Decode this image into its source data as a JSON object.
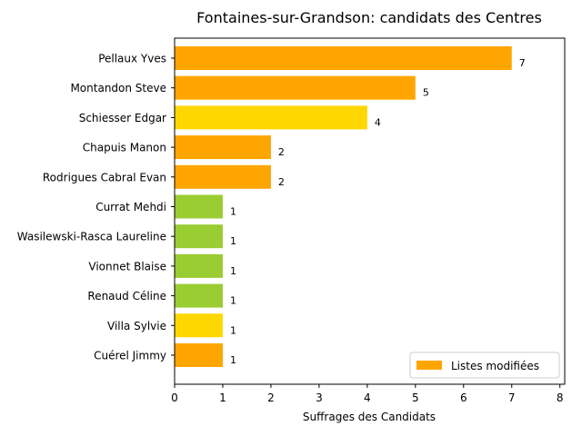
{
  "chart_data": {
    "type": "bar",
    "orientation": "horizontal",
    "title": "Fontaines-sur-Grandson: candidats des Centres",
    "xlabel": "Suffrages des Candidats",
    "ylabel": "",
    "xlim": [
      0,
      8.1
    ],
    "xticks": [
      0,
      1,
      2,
      3,
      4,
      5,
      6,
      7,
      8
    ],
    "categories": [
      "Pellaux Yves",
      "Montandon Steve",
      "Schiesser Edgar",
      "Chapuis Manon",
      "Rodrigues Cabral Evan",
      "Currat Mehdi",
      "Wasilewski-Rasca Laureline",
      "Vionnet Blaise",
      "Renaud Céline",
      "Villa Sylvie",
      "Cuérel Jimmy"
    ],
    "values": [
      7,
      5,
      4,
      2,
      2,
      1,
      1,
      1,
      1,
      1,
      1
    ],
    "bar_colors": [
      "#FFA500",
      "#FFA500",
      "#FFD700",
      "#FFA500",
      "#FFA500",
      "#9ACD32",
      "#9ACD32",
      "#9ACD32",
      "#9ACD32",
      "#FFD700",
      "#FFA500"
    ],
    "data_labels": [
      "7",
      "5",
      "4",
      "2",
      "2",
      "1",
      "1",
      "1",
      "1",
      "1",
      "1"
    ],
    "legend": {
      "position": "lower-right",
      "entries": [
        {
          "label": "Listes modifiées",
          "color": "#FFA500"
        }
      ]
    },
    "grid": false
  }
}
